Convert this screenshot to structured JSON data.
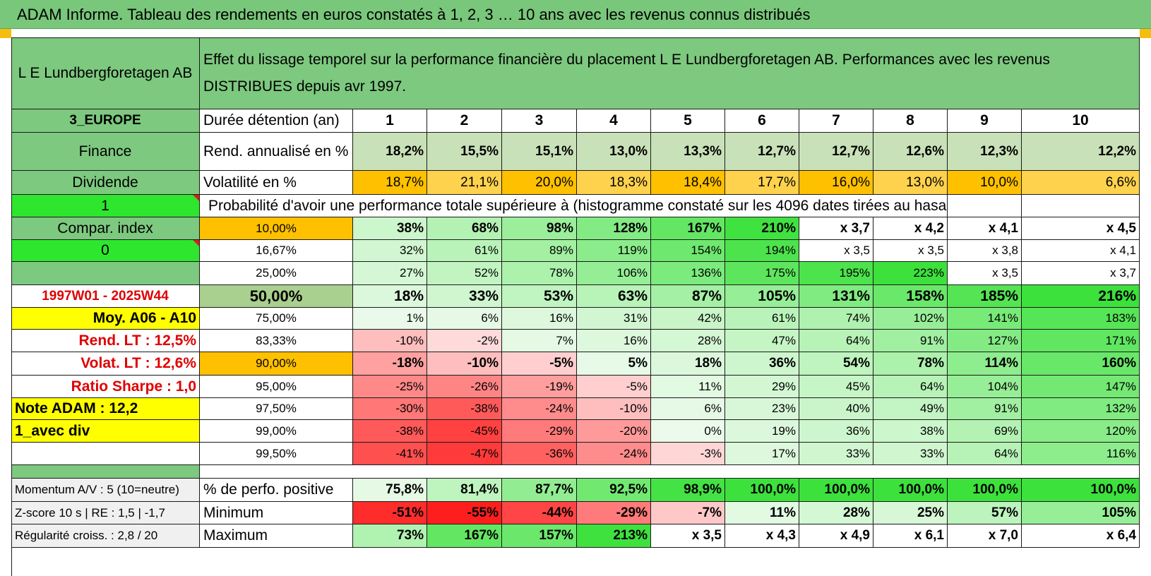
{
  "title": "ADAM Informe. Tableau des rendements en euros constatés à 1, 2, 3 … 10 ans avec les revenus connus distribués",
  "header": {
    "fund_name": "L E Lundbergforetagen AB",
    "description": "Effet du lissage temporel sur la performance financière du placement L E Lundbergforetagen AB. Performances avec les revenus DISTRIBUES depuis avr 1997."
  },
  "years": [
    "1",
    "2",
    "3",
    "4",
    "5",
    "6",
    "7",
    "8",
    "9",
    "10"
  ],
  "colors": {
    "green_header": "#7dc97f",
    "orange": "#ffc000",
    "yellow": "#ffff00",
    "bright_green": "#2ee62e",
    "red_text": "#e00000"
  },
  "left_col": {
    "region": "3_EUROPE",
    "sector": "Finance",
    "type": "Dividende",
    "flag1": "1",
    "compar": "Compar. index",
    "flag0": "0",
    "period": "1997W01 - 2025W44",
    "moy": "Moy. A06 - A10",
    "rend_lt": "Rend. LT :    12,5%",
    "volat_lt": "Volat. LT :    12,6%",
    "sharpe": "Ratio Sharpe :    1,0",
    "note": "Note ADAM : 12,2",
    "avec_div": "1_avec div",
    "momentum": "Momentum A/V : 5 (10=neutre)",
    "zscore": "Z-score 10 s | RE : 1,5 | -1,7",
    "regularite": "Régularité croiss. : 2,8 / 20"
  },
  "labels": {
    "duree": "Durée détention (an)",
    "rend": "Rend. annualisé en %",
    "vol": "Volatilité en %",
    "proba": "Probabilité d'avoir une performance totale supérieure à (histogramme constaté sur les 4096 dates tirées au hasard)",
    "pos": "% de perfo. positive",
    "min": "Minimum",
    "max": "Maximum"
  },
  "rend": [
    "18,2%",
    "15,5%",
    "15,1%",
    "13,0%",
    "13,3%",
    "12,7%",
    "12,7%",
    "12,6%",
    "12,3%",
    "12,2%"
  ],
  "vol": [
    "18,7%",
    "21,1%",
    "20,0%",
    "18,3%",
    "18,4%",
    "17,7%",
    "16,0%",
    "13,0%",
    "10,0%",
    "6,6%"
  ],
  "proba_rows": [
    {
      "p": "10,00%",
      "v": [
        "38%",
        "68%",
        "98%",
        "128%",
        "167%",
        "210%",
        "x 3,7",
        "x 4,2",
        "x 4,1",
        "x 4,5"
      ]
    },
    {
      "p": "16,67%",
      "v": [
        "32%",
        "61%",
        "89%",
        "119%",
        "154%",
        "194%",
        "x 3,5",
        "x 3,5",
        "x 3,8",
        "x 4,1"
      ]
    },
    {
      "p": "25,00%",
      "v": [
        "27%",
        "52%",
        "78%",
        "106%",
        "136%",
        "175%",
        "195%",
        "223%",
        "x 3,5",
        "x 3,7"
      ]
    },
    {
      "p": "50,00%",
      "v": [
        "18%",
        "33%",
        "53%",
        "63%",
        "87%",
        "105%",
        "131%",
        "158%",
        "185%",
        "216%"
      ]
    },
    {
      "p": "75,00%",
      "v": [
        "1%",
        "6%",
        "16%",
        "31%",
        "42%",
        "61%",
        "74%",
        "102%",
        "141%",
        "183%"
      ]
    },
    {
      "p": "83,33%",
      "v": [
        "-10%",
        "-2%",
        "7%",
        "16%",
        "28%",
        "47%",
        "64%",
        "91%",
        "127%",
        "171%"
      ]
    },
    {
      "p": "90,00%",
      "v": [
        "-18%",
        "-10%",
        "-5%",
        "5%",
        "18%",
        "36%",
        "54%",
        "78%",
        "114%",
        "160%"
      ]
    },
    {
      "p": "95,00%",
      "v": [
        "-25%",
        "-26%",
        "-19%",
        "-5%",
        "11%",
        "29%",
        "45%",
        "64%",
        "104%",
        "147%"
      ]
    },
    {
      "p": "97,50%",
      "v": [
        "-30%",
        "-38%",
        "-24%",
        "-10%",
        "6%",
        "23%",
        "40%",
        "49%",
        "91%",
        "132%"
      ]
    },
    {
      "p": "99,00%",
      "v": [
        "-38%",
        "-45%",
        "-29%",
        "-20%",
        "0%",
        "19%",
        "36%",
        "38%",
        "69%",
        "120%"
      ]
    },
    {
      "p": "99,50%",
      "v": [
        "-41%",
        "-47%",
        "-36%",
        "-24%",
        "-3%",
        "17%",
        "33%",
        "33%",
        "64%",
        "116%"
      ]
    }
  ],
  "pos": [
    "75,8%",
    "81,4%",
    "87,7%",
    "92,5%",
    "98,9%",
    "100,0%",
    "100,0%",
    "100,0%",
    "100,0%",
    "100,0%"
  ],
  "min": [
    "-51%",
    "-55%",
    "-44%",
    "-29%",
    "-7%",
    "11%",
    "28%",
    "25%",
    "57%",
    "105%"
  ],
  "max": [
    "73%",
    "167%",
    "157%",
    "213%",
    "x 3,5",
    "x 4,3",
    "x 4,9",
    "x 6,1",
    "x 7,0",
    "x 6,4"
  ]
}
